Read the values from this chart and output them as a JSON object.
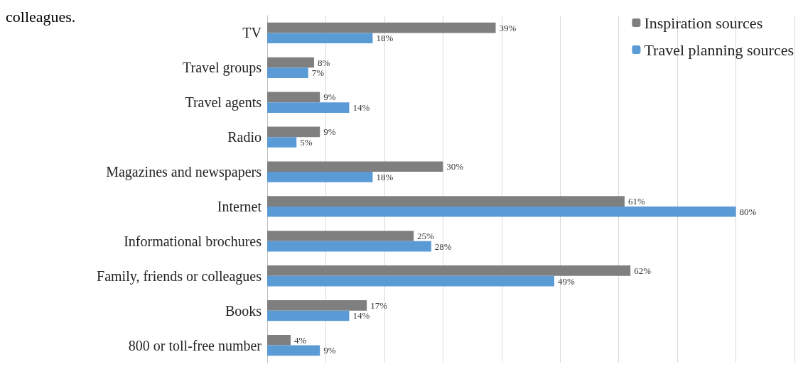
{
  "chart_data": {
    "type": "bar",
    "orientation": "horizontal",
    "annotations": [
      "colleagues."
    ],
    "categories": [
      "TV",
      "Travel groups",
      "Travel agents",
      "Radio",
      "Magazines and newspapers",
      "Internet",
      "Informational brochures",
      "Family, friends or colleagues",
      "Books",
      "800 or toll-free number"
    ],
    "series": [
      {
        "name": "Inspiration sources",
        "color": "#7f7f7f",
        "values": [
          39,
          8,
          9,
          9,
          30,
          61,
          25,
          62,
          17,
          4
        ],
        "value_labels": [
          "39%",
          "8%",
          "9%",
          "9%",
          "30%",
          "61%",
          "25%",
          "62%",
          "17%",
          "4%"
        ]
      },
      {
        "name": "Travel planning sources",
        "color": "#5b9bd5",
        "values": [
          18,
          7,
          14,
          5,
          18,
          80,
          28,
          49,
          14,
          9
        ],
        "value_labels": [
          "18%",
          "7%",
          "14%",
          "5%",
          "18%",
          "80%",
          "28%",
          "49%",
          "14%",
          "9%"
        ]
      }
    ],
    "xlim": [
      0,
      90
    ],
    "xticks": [
      {
        "value": 0,
        "label": null
      },
      {
        "value": 10,
        "label": null
      },
      {
        "value": 20,
        "label": null
      },
      {
        "value": 30,
        "label": null
      },
      {
        "value": 40,
        "label": null
      },
      {
        "value": 50,
        "label": null
      },
      {
        "value": 60,
        "label": null
      },
      {
        "value": 70,
        "label": null
      },
      {
        "value": 80,
        "label": null
      },
      {
        "value": 90,
        "label": null
      }
    ],
    "grid": "x",
    "legend": "top right"
  }
}
